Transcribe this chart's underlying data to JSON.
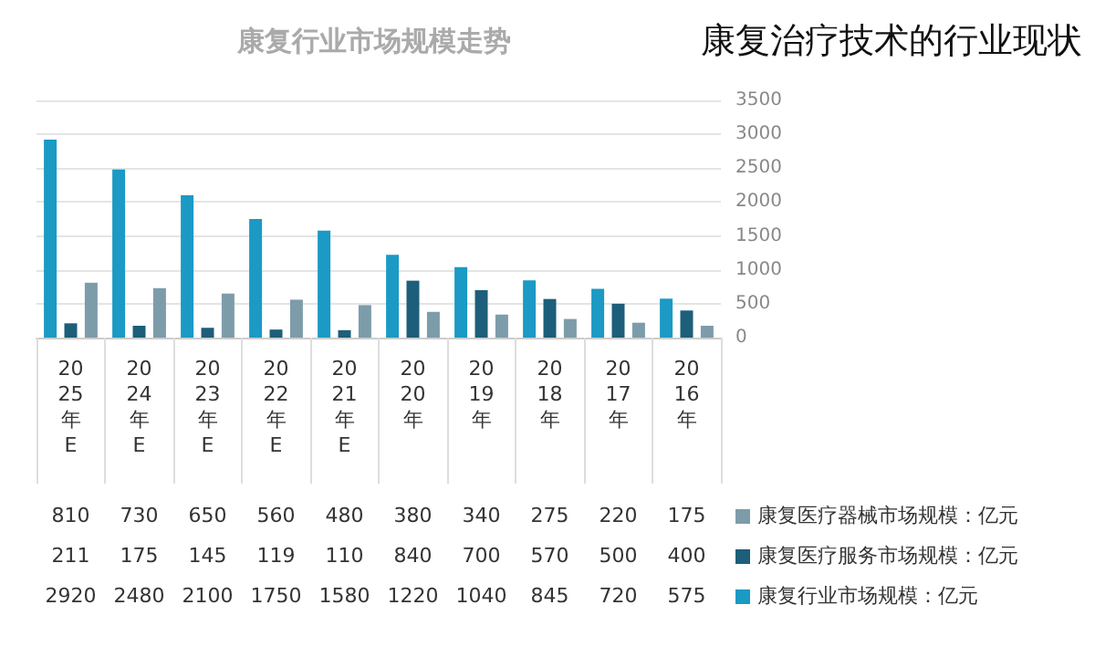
{
  "chart_data": {
    "type": "bar",
    "title": "康复治疗技术的行业现状",
    "subtitle": "康复行业市场规模走势",
    "categories": [
      "2025年E",
      "2024年E",
      "2023年E",
      "2022年E",
      "2021年E",
      "2020年",
      "2019年",
      "2018年",
      "2017年",
      "2016年"
    ],
    "series": [
      {
        "name": "康复行业市场规模：亿元",
        "color": "#1a9ac4",
        "values": [
          2920,
          2480,
          2100,
          1750,
          1580,
          1220,
          1040,
          845,
          720,
          575
        ]
      },
      {
        "name": "康复医疗服务市场规模：亿元",
        "color": "#1d5e7a",
        "values": [
          211,
          175,
          145,
          119,
          110,
          840,
          700,
          570,
          500,
          400
        ]
      },
      {
        "name": "康复医疗器械市场规模：亿元",
        "color": "#7d9caa",
        "values": [
          810,
          730,
          650,
          560,
          480,
          380,
          340,
          275,
          220,
          175
        ]
      }
    ],
    "ylim": [
      0,
      3500
    ],
    "yticks": [
      0,
      500,
      1000,
      1500,
      2000,
      2500,
      3000,
      3500
    ],
    "grid": "y",
    "legend": "bottom right",
    "data_labels": true
  }
}
